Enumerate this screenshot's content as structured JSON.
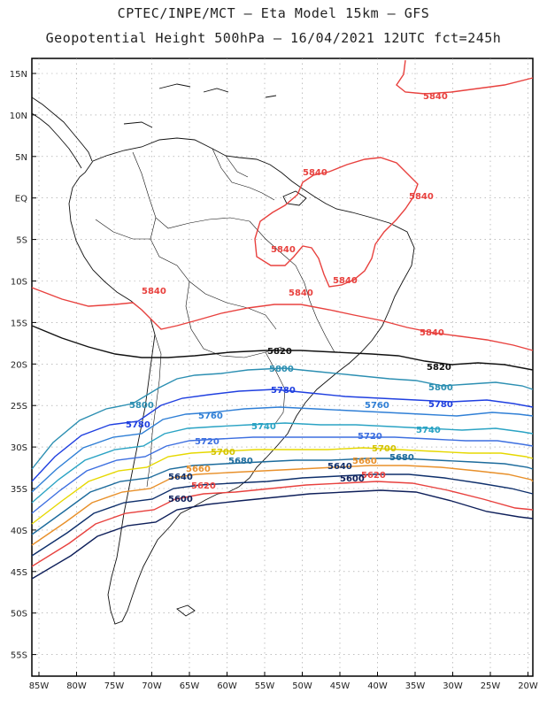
{
  "title": {
    "line1": "CPTEC/INPE/MCT –  Eta Model 15km – GFS",
    "line2": "Geopotential Height 500hPa – 16/04/2021 12UTC fct=245h"
  },
  "map": {
    "lon_labels": [
      "85W",
      "80W",
      "75W",
      "70W",
      "65W",
      "60W",
      "55W",
      "50W",
      "45W",
      "40W",
      "35W",
      "30W",
      "25W",
      "20W"
    ],
    "lat_labels": [
      "15N",
      "10N",
      "5N",
      "EQ",
      "5S",
      "10S",
      "15S",
      "20S",
      "25S",
      "30S",
      "35S",
      "40S",
      "45S",
      "50S",
      "55S"
    ]
  },
  "contours": [
    {
      "value": "5840",
      "color": "#e8413e"
    },
    {
      "value": "5820",
      "color": "#111111"
    },
    {
      "value": "5800",
      "color": "#2c8fb2"
    },
    {
      "value": "5780",
      "color": "#1f3fe0"
    },
    {
      "value": "5760",
      "color": "#2f7fd6"
    },
    {
      "value": "5740",
      "color": "#2aa3c4"
    },
    {
      "value": "5720",
      "color": "#3d6fe0"
    },
    {
      "value": "5700",
      "color": "#e6d800"
    },
    {
      "value": "5680",
      "color": "#1c6b9c"
    },
    {
      "value": "5660",
      "color": "#e8902a"
    },
    {
      "value": "5640",
      "color": "#0e2f6b"
    },
    {
      "value": "5620",
      "color": "#e8413e"
    },
    {
      "value": "5600",
      "color": "#0e1f5a"
    }
  ]
}
